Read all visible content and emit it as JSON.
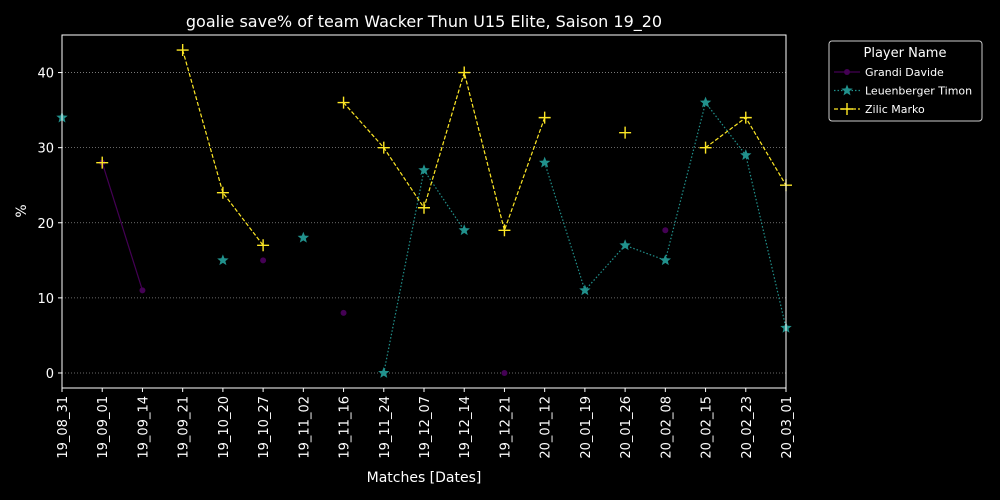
{
  "chart_data": {
    "type": "line",
    "title": "goalie save% of team Wacker Thun U15 Elite, Saison 19_20",
    "xlabel": "Matches [Dates]",
    "ylabel": "%",
    "categories": [
      "19_08_31",
      "19_09_01",
      "19_09_14",
      "19_09_21",
      "19_10_20",
      "19_10_27",
      "19_11_02",
      "19_11_16",
      "19_11_24",
      "19_12_07",
      "19_12_14",
      "19_12_21",
      "20_01_12",
      "20_01_19",
      "20_01_26",
      "20_02_08",
      "20_02_15",
      "20_02_23",
      "20_03_01"
    ],
    "ylim": [
      -2,
      45
    ],
    "yticks": [
      0,
      10,
      20,
      30,
      40
    ],
    "grid": "horizontal dotted",
    "legend": {
      "title": "Player Name",
      "position": "outside-right-top"
    },
    "series": [
      {
        "name": "Grandi Davide",
        "color": "#440154",
        "linestyle": "solid",
        "marker": "circle",
        "values": [
          null,
          28,
          11,
          null,
          null,
          15,
          null,
          8,
          null,
          null,
          null,
          0,
          null,
          null,
          null,
          19,
          null,
          null,
          null
        ]
      },
      {
        "name": "Leuenberger Timon",
        "color": "#21918c",
        "linestyle": "dotted",
        "marker": "star",
        "values": [
          34,
          null,
          null,
          null,
          15,
          null,
          18,
          null,
          0,
          27,
          19,
          null,
          28,
          11,
          17,
          15,
          36,
          29,
          6
        ]
      },
      {
        "name": "Zilic Marko",
        "color": "#fde725",
        "linestyle": "dashed",
        "marker": "plus",
        "values": [
          null,
          28,
          null,
          43,
          24,
          17,
          null,
          36,
          30,
          22,
          40,
          19,
          34,
          null,
          32,
          null,
          30,
          34,
          25
        ]
      }
    ]
  }
}
